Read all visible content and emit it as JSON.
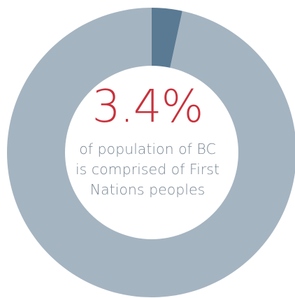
{
  "chart_data": {
    "type": "pie",
    "style": "donut",
    "slices": [
      {
        "label": "First Nations peoples",
        "value": 3.4,
        "color": "#5a7a93"
      },
      {
        "label": "",
        "value": 96.6,
        "color": "#a5b4c1"
      }
    ]
  },
  "headline": {
    "value": "3.4%",
    "color": "#c8323c"
  },
  "caption": {
    "lines": [
      "of population of BC",
      "is comprised of First",
      "Nations peoples"
    ],
    "color": "#7a8794"
  }
}
